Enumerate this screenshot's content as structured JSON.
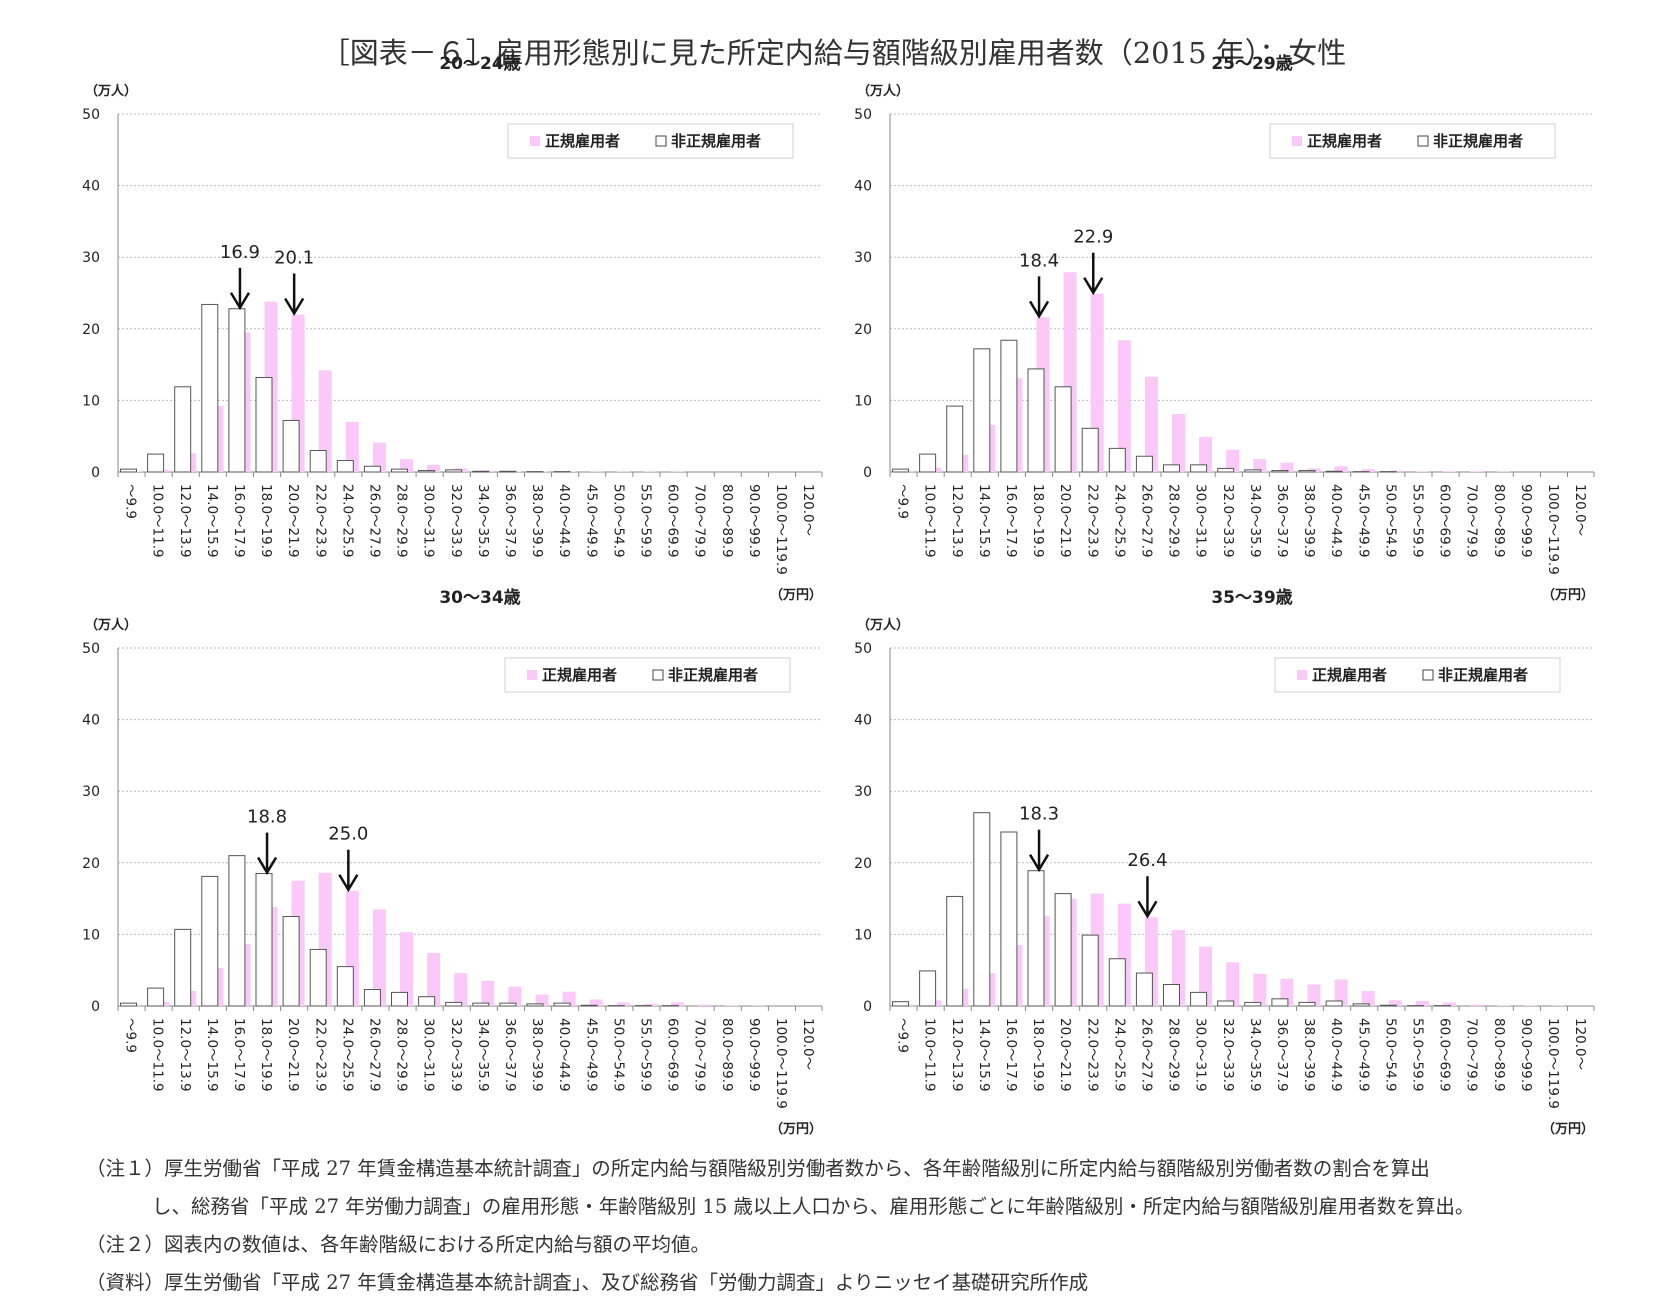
{
  "title": "［図表－６］雇用形態別に見た所定内給与額階級別雇用者数（2015 年）：女性",
  "legend": {
    "regular": "正規雇用者",
    "nonregular": "非正規雇用者"
  },
  "y_unit": "（万人）",
  "x_unit": "（万円）",
  "colors": {
    "regular": "#fbc8fa",
    "nonregular": "#ffffff",
    "nonregular_stroke": "#555555",
    "grid": "#bbbbbb",
    "axis": "#888888"
  },
  "chart_data": [
    {
      "type": "bar",
      "title": "20～24歳",
      "categories": [
        "～9.9",
        "10.0～11.9",
        "12.0～13.9",
        "14.0～15.9",
        "16.0～17.9",
        "18.0～19.9",
        "20.0～21.9",
        "22.0～23.9",
        "24.0～25.9",
        "26.0～27.9",
        "28.0～29.9",
        "30.0～31.9",
        "32.0～33.9",
        "34.0～35.9",
        "36.0～37.9",
        "38.0～39.9",
        "40.0～44.9",
        "45.0～49.9",
        "50.0～54.9",
        "55.0～59.9",
        "60.0～69.9",
        "70.0～79.9",
        "80.0～89.9",
        "90.0～99.9",
        "100.0～119.9",
        "120.0～"
      ],
      "series": [
        {
          "name": "正規雇用者",
          "values": [
            0.1,
            0.3,
            2.6,
            9.2,
            19.5,
            23.8,
            22.0,
            14.2,
            7.0,
            4.1,
            1.8,
            1.0,
            0.5,
            0.2,
            0.1,
            0.1,
            0.1,
            0.05,
            0.05,
            0.05,
            0.05,
            0,
            0,
            0,
            0,
            0
          ]
        },
        {
          "name": "非正規雇用者",
          "values": [
            0.4,
            2.5,
            11.9,
            23.4,
            22.8,
            13.2,
            7.2,
            3.0,
            1.6,
            0.8,
            0.4,
            0.2,
            0.3,
            0.1,
            0.1,
            0.05,
            0.05,
            0,
            0,
            0,
            0,
            0,
            0,
            0,
            0,
            0
          ]
        }
      ],
      "annotations": [
        {
          "label": "16.9",
          "category": "16.0～17.9"
        },
        {
          "label": "20.1",
          "category": "20.0～21.9"
        }
      ],
      "ylim": [
        0,
        50
      ],
      "yticks": [
        0,
        10,
        20,
        30,
        40,
        50
      ],
      "grid": true,
      "legend_position": "top-right"
    },
    {
      "type": "bar",
      "title": "25～29歳",
      "categories": [
        "～9.9",
        "10.0～11.9",
        "12.0～13.9",
        "14.0～15.9",
        "16.0～17.9",
        "18.0～19.9",
        "20.0～21.9",
        "22.0～23.9",
        "24.0～25.9",
        "26.0～27.9",
        "28.0～29.9",
        "30.0～31.9",
        "32.0～33.9",
        "34.0～35.9",
        "36.0～37.9",
        "38.0～39.9",
        "40.0～44.9",
        "45.0～49.9",
        "50.0～54.9",
        "55.0～59.9",
        "60.0～69.9",
        "70.0～79.9",
        "80.0～89.9",
        "90.0～99.9",
        "100.0～119.9",
        "120.0～"
      ],
      "series": [
        {
          "name": "正規雇用者",
          "values": [
            0.2,
            0.6,
            2.4,
            6.6,
            13.1,
            21.6,
            27.9,
            24.9,
            18.4,
            13.3,
            8.1,
            4.9,
            3.1,
            1.8,
            1.3,
            0.5,
            0.8,
            0.4,
            0.2,
            0.1,
            0.1,
            0.1,
            0.05,
            0,
            0,
            0
          ]
        },
        {
          "name": "非正規雇用者",
          "values": [
            0.4,
            2.5,
            9.2,
            17.2,
            18.4,
            14.4,
            11.9,
            6.1,
            3.3,
            2.2,
            1.0,
            1.0,
            0.5,
            0.3,
            0.2,
            0.2,
            0.1,
            0.05,
            0.05,
            0,
            0,
            0,
            0,
            0,
            0,
            0
          ]
        }
      ],
      "annotations": [
        {
          "label": "18.4",
          "category": "18.0～19.9"
        },
        {
          "label": "22.9",
          "category": "22.0～23.9"
        }
      ],
      "ylim": [
        0,
        50
      ],
      "yticks": [
        0,
        10,
        20,
        30,
        40,
        50
      ],
      "grid": true,
      "legend_position": "top-right"
    },
    {
      "type": "bar",
      "title": "30～34歳",
      "categories": [
        "～9.9",
        "10.0～11.9",
        "12.0～13.9",
        "14.0～15.9",
        "16.0～17.9",
        "18.0～19.9",
        "20.0～21.9",
        "22.0～23.9",
        "24.0～25.9",
        "26.0～27.9",
        "28.0～29.9",
        "30.0～31.9",
        "32.0～33.9",
        "34.0～35.9",
        "36.0～37.9",
        "38.0～39.9",
        "40.0～44.9",
        "45.0～49.9",
        "50.0～54.9",
        "55.0～59.9",
        "60.0～69.9",
        "70.0～79.9",
        "80.0～89.9",
        "90.0～99.9",
        "100.0～119.9",
        "120.0～"
      ],
      "series": [
        {
          "name": "正規雇用者",
          "values": [
            0.2,
            0.6,
            2.1,
            5.3,
            8.7,
            13.8,
            17.5,
            18.6,
            16.1,
            13.5,
            10.3,
            7.4,
            4.6,
            3.5,
            2.7,
            1.6,
            2.0,
            0.9,
            0.5,
            0.3,
            0.5,
            0.2,
            0.1,
            0.05,
            0,
            0
          ]
        },
        {
          "name": "非正規雇用者",
          "values": [
            0.4,
            2.5,
            10.7,
            18.1,
            21.0,
            18.5,
            12.5,
            7.9,
            5.5,
            2.3,
            1.9,
            1.3,
            0.5,
            0.4,
            0.4,
            0.3,
            0.4,
            0.1,
            0.05,
            0.05,
            0.05,
            0,
            0,
            0,
            0,
            0
          ]
        }
      ],
      "annotations": [
        {
          "label": "18.8",
          "category": "18.0～19.9"
        },
        {
          "label": "25.0",
          "category": "24.0～25.9"
        }
      ],
      "ylim": [
        0,
        50
      ],
      "yticks": [
        0,
        10,
        20,
        30,
        40,
        50
      ],
      "grid": true,
      "legend_position": "top-right"
    },
    {
      "type": "bar",
      "title": "35～39歳",
      "categories": [
        "～9.9",
        "10.0～11.9",
        "12.0～13.9",
        "14.0～15.9",
        "16.0～17.9",
        "18.0～19.9",
        "20.0～21.9",
        "22.0～23.9",
        "24.0～25.9",
        "26.0～27.9",
        "28.0～29.9",
        "30.0～31.9",
        "32.0～33.9",
        "34.0～35.9",
        "36.0～37.9",
        "38.0～39.9",
        "40.0～44.9",
        "45.0～49.9",
        "50.0～54.9",
        "55.0～59.9",
        "60.0～69.9",
        "70.0～79.9",
        "80.0～89.9",
        "90.0～99.9",
        "100.0～119.9",
        "120.0～"
      ],
      "series": [
        {
          "name": "正規雇用者",
          "values": [
            0.2,
            0.8,
            2.4,
            4.6,
            8.5,
            12.6,
            15.0,
            15.7,
            14.3,
            12.4,
            10.6,
            8.3,
            6.1,
            4.5,
            3.8,
            3.0,
            3.7,
            2.1,
            0.8,
            0.7,
            0.5,
            0.2,
            0.1,
            0.1,
            0.05,
            0
          ]
        },
        {
          "name": "非正規雇用者",
          "values": [
            0.6,
            4.9,
            15.3,
            27.0,
            24.3,
            18.9,
            15.7,
            9.9,
            6.6,
            4.6,
            3.0,
            1.9,
            0.7,
            0.5,
            1.0,
            0.5,
            0.7,
            0.3,
            0.1,
            0.05,
            0.05,
            0,
            0,
            0,
            0,
            0
          ]
        }
      ],
      "annotations": [
        {
          "label": "18.3",
          "category": "18.0～19.9"
        },
        {
          "label": "26.4",
          "category": "26.0～27.9"
        }
      ],
      "ylim": [
        0,
        50
      ],
      "yticks": [
        0,
        10,
        20,
        30,
        40,
        50
      ],
      "grid": true,
      "legend_position": "top-right"
    }
  ],
  "notes": {
    "note1_line1": "（注１）厚生労働省「平成 27 年賃金構造基本統計調査」の所定内給与額階級別労働者数から、各年齢階級別に所定内給与額階級別労働者数の割合を算出",
    "note1_line2": "し、総務省「平成 27 年労働力調査」の雇用形態・年齢階級別 15 歳以上人口から、雇用形態ごとに年齢階級別・所定内給与額階級別雇用者数を算出。",
    "note2": "（注２）図表内の数値は、各年齢階級における所定内給与額の平均値。",
    "source": "（資料）厚生労働省「平成 27 年賃金構造基本統計調査」、及び総務省「労働力調査」よりニッセイ基礎研究所作成"
  }
}
